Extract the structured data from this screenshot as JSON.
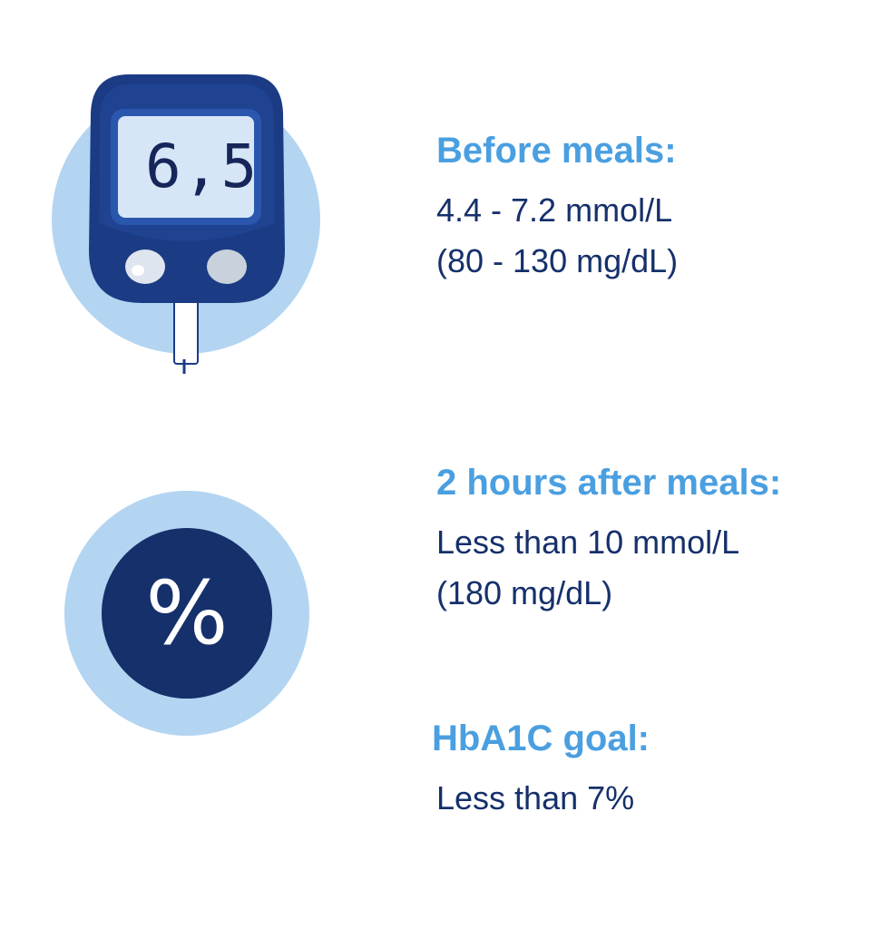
{
  "meter": {
    "display_value": "6,5",
    "icon": "glucose-meter-icon"
  },
  "percent_icon": {
    "symbol": "%",
    "icon": "percent-icon"
  },
  "before_meals": {
    "heading": "Before meals:",
    "line1": "4.4 - 7.2 mmol/L",
    "line2": "(80 - 130 mg/dL)"
  },
  "after_meals": {
    "heading": "2 hours after meals:",
    "line1": "Less than 10 mmol/L",
    "line2": "(180 mg/dL)"
  },
  "hba1c": {
    "heading": "HbA1C goal:",
    "line1": "Less than 7%"
  },
  "colors": {
    "heading_blue": "#4a9fe0",
    "text_navy": "#15306b",
    "light_circle": "#b3d5f2",
    "device_navy": "#1b3b84",
    "screen_blue": "#d6e6f7"
  }
}
